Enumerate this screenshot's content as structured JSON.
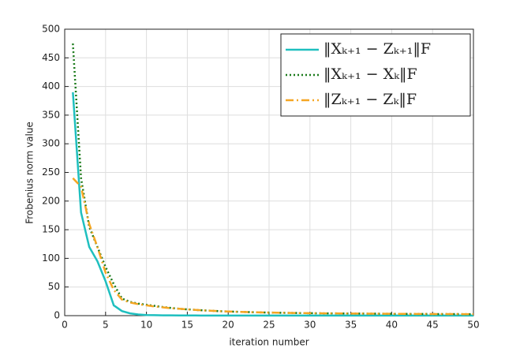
{
  "chart_data": {
    "type": "line",
    "x_label": "iteration number",
    "y_label": "Frobenius norm value",
    "x": [
      1,
      2,
      3,
      4,
      5,
      6,
      7,
      8,
      9,
      10,
      11,
      12,
      13,
      14,
      15,
      16,
      17,
      18,
      19,
      20,
      21,
      22,
      23,
      24,
      25,
      26,
      27,
      28,
      29,
      30,
      31,
      32,
      33,
      34,
      35,
      36,
      37,
      38,
      39,
      40,
      41,
      42,
      43,
      44,
      45,
      46,
      47,
      48,
      49,
      50
    ],
    "series": [
      {
        "name": "‖Xₖ₊₁ − Zₖ₊₁‖F",
        "color": "#1fbfbf",
        "linestyle": "solid",
        "values": [
          390,
          180,
          120,
          95,
          60,
          18,
          8,
          4,
          2,
          1,
          0.8,
          0.6,
          0.5,
          0.4,
          0.3,
          0.3,
          0.2,
          0.2,
          0.2,
          0.1,
          0.1,
          0.1,
          0.1,
          0.1,
          0.1,
          0.1,
          0.1,
          0.1,
          0.1,
          0.1,
          0.1,
          0.1,
          0.1,
          0.1,
          0.1,
          0.1,
          0.1,
          0.1,
          0.1,
          0.1,
          0.1,
          0.1,
          0.1,
          0.1,
          0.1,
          0.1,
          0.1,
          0.1,
          0.1,
          0.1
        ]
      },
      {
        "name": "‖Xₖ₊₁ − Xₖ‖F",
        "color": "#1a7a1a",
        "linestyle": "dotted",
        "values": [
          475,
          240,
          155,
          120,
          85,
          55,
          30,
          24,
          21,
          19,
          17,
          15,
          13.5,
          12,
          11,
          10,
          9.2,
          8.5,
          7.8,
          7.2,
          6.8,
          6.4,
          6,
          5.7,
          5.4,
          5.1,
          4.9,
          4.7,
          4.5,
          4.3,
          4.1,
          4,
          3.9,
          3.8,
          3.7,
          3.6,
          3.5,
          3.4,
          3.3,
          3.2,
          3.1,
          3,
          3,
          2.9,
          2.8,
          2.8,
          2.7,
          2.7,
          2.6,
          2.6
        ]
      },
      {
        "name": "‖Zₖ₊₁ − Zₖ‖F",
        "color": "#f5a623",
        "linestyle": "dashdot",
        "values": [
          240,
          225,
          160,
          120,
          75,
          45,
          28,
          23,
          20,
          18,
          16,
          14.5,
          13,
          12,
          11,
          10,
          9.2,
          8.5,
          7.8,
          7.2,
          6.8,
          6.4,
          6,
          5.7,
          5.4,
          5.1,
          4.9,
          4.7,
          4.5,
          4.3,
          4.1,
          4,
          3.9,
          3.8,
          3.7,
          3.6,
          3.5,
          3.4,
          3.3,
          3.2,
          3.1,
          3,
          3,
          2.9,
          2.8,
          2.8,
          2.7,
          2.7,
          2.6,
          2.6
        ]
      }
    ],
    "xlim": [
      0,
      50
    ],
    "xticks": [
      0,
      5,
      10,
      15,
      20,
      25,
      30,
      35,
      40,
      45,
      50
    ],
    "ylim": [
      0,
      500
    ],
    "yticks": [
      0,
      50,
      100,
      150,
      200,
      250,
      300,
      350,
      400,
      450,
      500
    ],
    "grid": true,
    "legend": "upper-right"
  }
}
